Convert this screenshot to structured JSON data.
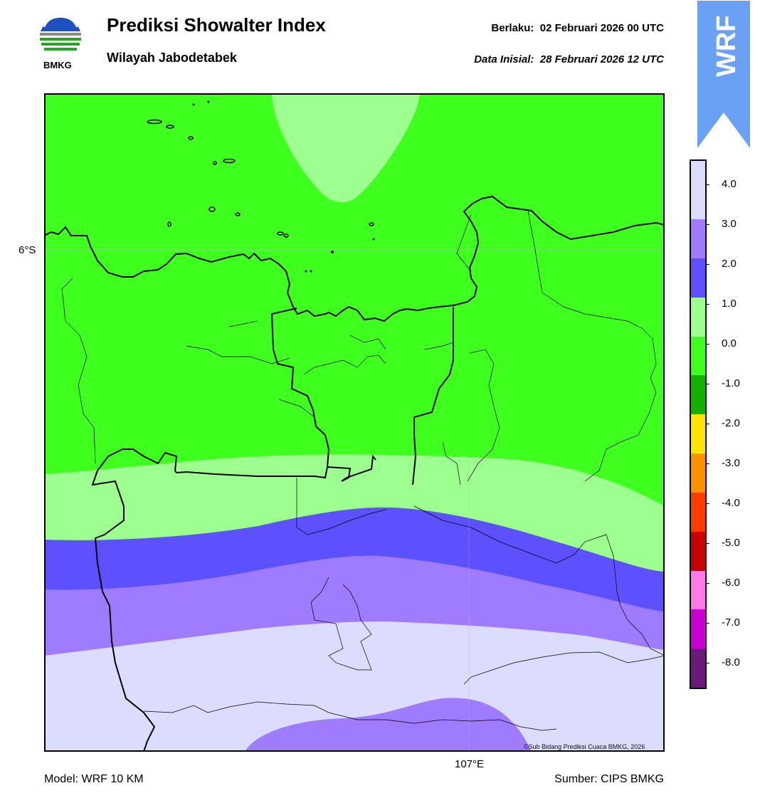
{
  "header": {
    "title": "Prediksi Showalter Index",
    "subtitle": "Wilayah Jabodetabek",
    "valid_text": "Berlaku:  02 Februari 2026 00 UTC",
    "init_text": "Data Inisial:  28 Februari 2026 12 UTC",
    "logo_label": "BMKG"
  },
  "badge": {
    "label": "WRF",
    "color": "#6aa1f5"
  },
  "map": {
    "lat_label": "6°S",
    "lon_label": "107°E",
    "credit": "©Sub Bidang Prediksi Cuaca BMKG, 2026"
  },
  "colorbar": {
    "ticks": [
      "4.0",
      "3.0",
      "2.0",
      "1.0",
      "0.0",
      "-1.0",
      "-2.0",
      "-3.0",
      "-4.0",
      "-5.0",
      "-6.0",
      "-7.0",
      "-8.0"
    ],
    "colors": [
      "#dcdcff",
      "#9f7cff",
      "#5c50ff",
      "#9cff8f",
      "#3fff1f",
      "#14b000",
      "#ffe400",
      "#ff9000",
      "#ff3c00",
      "#c80000",
      "#ff7ae8",
      "#c800d0",
      "#6a1a78"
    ],
    "levels": {
      "above_3": "#dcdcff",
      "2_to_3": "#9f7cff",
      "1_to_2": "#5c50ff",
      "0_to_1": "#9cff8f",
      "-1_to_0": "#3fff1f"
    }
  },
  "footer": {
    "model": "Model: WRF 10 KM",
    "source": "Sumber: CIPS BMKG"
  }
}
